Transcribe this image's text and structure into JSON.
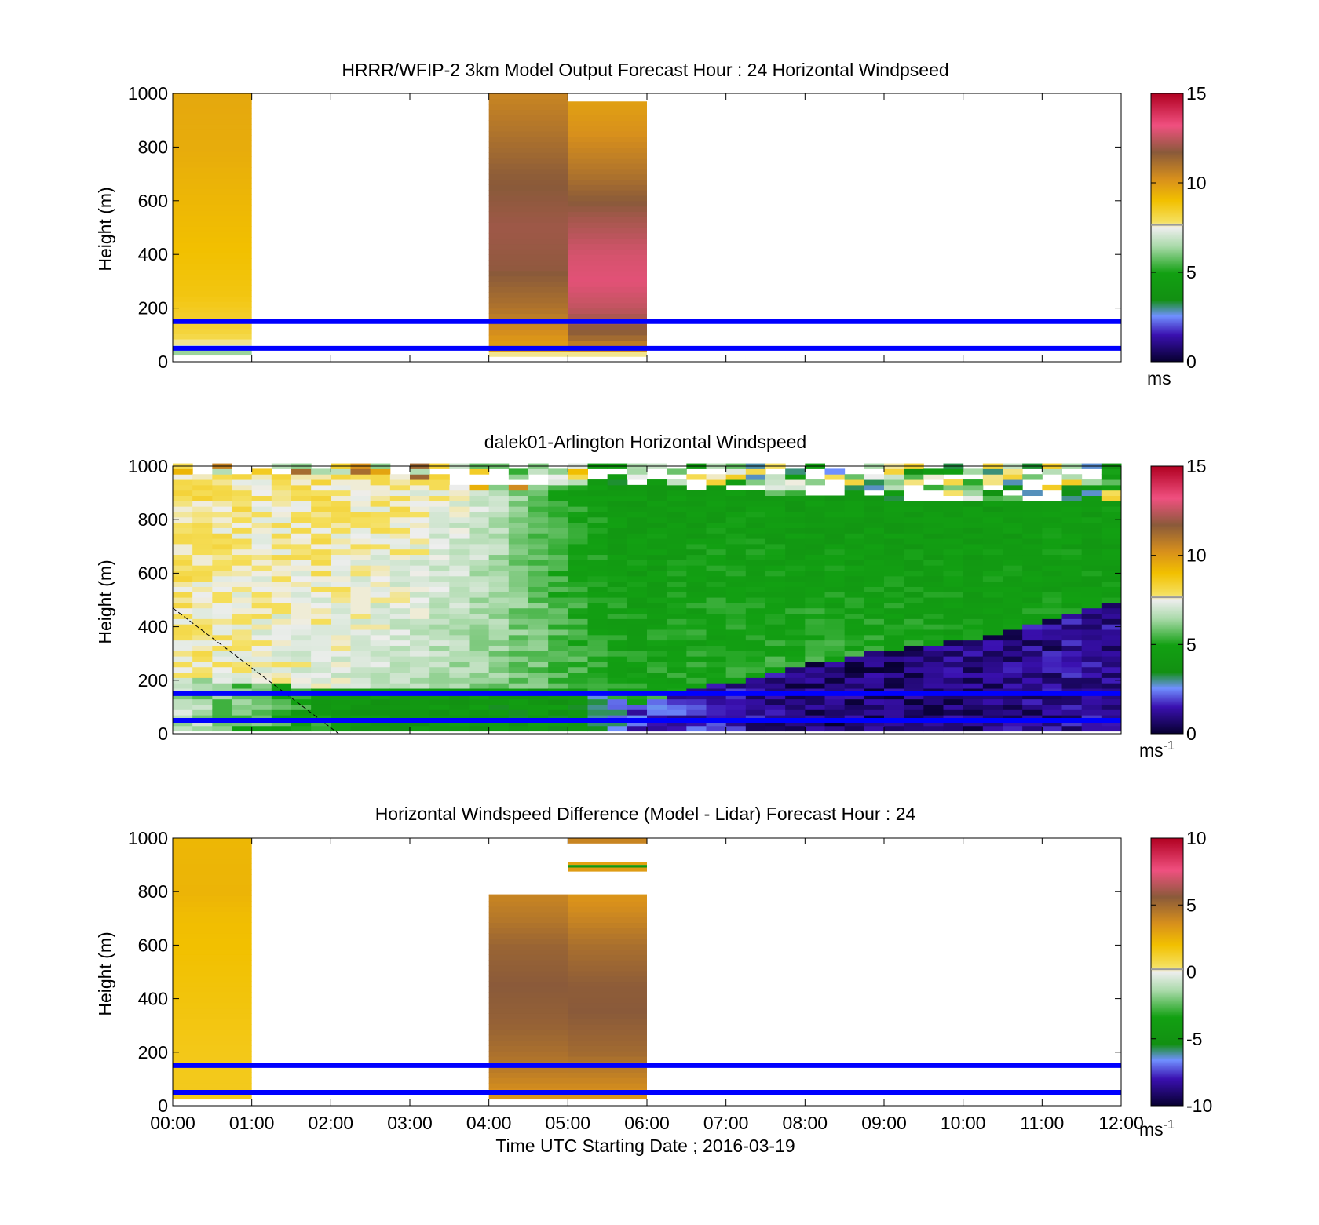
{
  "figure": {
    "xlabel": "Time UTC  Starting Date ; 2016-03-19",
    "x_ticks": [
      "00:00",
      "01:00",
      "02:00",
      "03:00",
      "04:00",
      "05:00",
      "06:00",
      "07:00",
      "08:00",
      "09:00",
      "10:00",
      "11:00",
      "12:00"
    ],
    "y_ticks": [
      "0",
      "200",
      "400",
      "600",
      "800",
      "1000"
    ],
    "reference_heights_m": [
      50,
      150
    ],
    "reference_color": "#0000ff"
  },
  "chart_data": [
    {
      "type": "heatmap",
      "title": "HRRR/WFIP-2 3km Model Output   Forecast Hour : 24 Horizontal Windpseed",
      "ylabel": "Height (m)",
      "xlim_hours": [
        0,
        12
      ],
      "ylim": [
        0,
        1000
      ],
      "colorbar": {
        "ticks": [
          "0",
          "5",
          "10",
          "15"
        ],
        "range": [
          0,
          15
        ],
        "unit": "ms",
        "unit_sup": ""
      },
      "columns": [
        {
          "t_start": 0,
          "t_end": 1,
          "ztop": 1000,
          "zbottom": 25,
          "profile": [
            [
              0,
              5.6
            ],
            [
              25,
              5.8
            ],
            [
              45,
              6.8
            ],
            [
              70,
              7.6
            ],
            [
              100,
              8.2
            ],
            [
              250,
              8.8
            ],
            [
              500,
              9.1
            ],
            [
              800,
              9.5
            ],
            [
              1000,
              9.6
            ]
          ]
        },
        {
          "t_start": 4,
          "t_end": 5,
          "ztop": 1000,
          "zbottom": 20,
          "profile": [
            [
              0,
              3.5
            ],
            [
              20,
              3.5
            ],
            [
              35,
              9.8
            ],
            [
              80,
              10.0
            ],
            [
              200,
              11.0
            ],
            [
              350,
              11.8
            ],
            [
              500,
              12.0
            ],
            [
              700,
              11.6
            ],
            [
              850,
              11.0
            ],
            [
              1000,
              10.5
            ]
          ]
        },
        {
          "t_start": 5,
          "t_end": 6,
          "ztop": 970,
          "zbottom": 20,
          "profile": [
            [
              0,
              3.5
            ],
            [
              20,
              3.5
            ],
            [
              35,
              9.8
            ],
            [
              100,
              11.5
            ],
            [
              200,
              12.5
            ],
            [
              300,
              13.0
            ],
            [
              400,
              12.8
            ],
            [
              550,
              12.0
            ],
            [
              700,
              11.0
            ],
            [
              850,
              10.2
            ],
            [
              1000,
              9.7
            ]
          ]
        }
      ]
    },
    {
      "type": "heatmap",
      "title": "dalek01-Arlington  Horizontal Windspeed",
      "ylabel": "Height (m)",
      "xlim_hours": [
        0,
        12
      ],
      "ylim": [
        0,
        1000
      ],
      "colorbar": {
        "ticks": [
          "0",
          "5",
          "10",
          "15"
        ],
        "range": [
          0,
          15
        ],
        "unit": "ms",
        "unit_sup": "-1"
      },
      "hour_profiles": [
        {
          "t": 0.25,
          "top": 950,
          "bottom_region_top": 200,
          "near_ground": 6.5,
          "mid": 7.6,
          "upper": 8.0
        },
        {
          "t": 1.0,
          "top": 950,
          "bottom_region_top": 180,
          "near_ground": 5.5,
          "mid": 7.4,
          "upper": 7.8
        },
        {
          "t": 2.0,
          "top": 950,
          "bottom_region_top": 160,
          "near_ground": 4.5,
          "mid": 7.2,
          "upper": 7.9
        },
        {
          "t": 3.0,
          "top": 950,
          "bottom_region_top": 160,
          "near_ground": 4.0,
          "mid": 6.8,
          "upper": 7.8
        },
        {
          "t": 4.0,
          "top": 900,
          "bottom_region_top": 160,
          "near_ground": 4.2,
          "mid": 6.2,
          "upper": 7.0
        },
        {
          "t": 5.0,
          "top": 920,
          "bottom_region_top": 160,
          "near_ground": 4.0,
          "mid": 5.5,
          "upper": 5.0
        },
        {
          "t": 5.8,
          "top": 920,
          "bottom_region_top": 100,
          "near_ground": 2.0,
          "mid": 5.0,
          "upper": 4.3
        },
        {
          "t": 7.0,
          "top": 900,
          "bottom_region_top": 180,
          "near_ground": 1.5,
          "mid": 5.2,
          "upper": 4.5
        },
        {
          "t": 8.0,
          "top": 880,
          "bottom_region_top": 250,
          "near_ground": 0.8,
          "mid": 5.2,
          "upper": 4.3
        },
        {
          "t": 9.0,
          "top": 870,
          "bottom_region_top": 300,
          "near_ground": 0.8,
          "mid": 5.0,
          "upper": 4.3
        },
        {
          "t": 10.0,
          "top": 850,
          "bottom_region_top": 340,
          "near_ground": 0.8,
          "mid": 4.8,
          "upper": 4.3
        },
        {
          "t": 11.0,
          "top": 850,
          "bottom_region_top": 400,
          "near_ground": 1.0,
          "mid": 4.8,
          "upper": 4.5
        },
        {
          "t": 11.9,
          "top": 850,
          "bottom_region_top": 480,
          "near_ground": 1.2,
          "mid": 4.6,
          "upper": 4.5
        }
      ],
      "dashed_line": {
        "from": [
          0.0,
          470
        ],
        "to": [
          2.1,
          0
        ]
      }
    },
    {
      "type": "heatmap",
      "title": "Horizontal Windspeed Difference (Model - Lidar) Forecast Hour : 24",
      "ylabel": "Height (m)",
      "xlim_hours": [
        0,
        12
      ],
      "ylim": [
        0,
        1000
      ],
      "colorbar": {
        "ticks": [
          "-10",
          "-5",
          "0",
          "5",
          "10"
        ],
        "range": [
          -10,
          10
        ],
        "unit": "ms",
        "unit_sup": "-1"
      },
      "columns": [
        {
          "t_start": 0,
          "t_end": 1,
          "ztop": 1000,
          "zbottom": 25,
          "profile": [
            [
              0,
              1.5
            ],
            [
              200,
              1.6
            ],
            [
              500,
              1.9
            ],
            [
              700,
              2.1
            ],
            [
              800,
              2.4
            ],
            [
              1000,
              2.3
            ]
          ]
        },
        {
          "t_start": 4,
          "t_end": 5,
          "ztop": 790,
          "zbottom": 25,
          "profile": [
            [
              0,
              3.0
            ],
            [
              40,
              3.5
            ],
            [
              150,
              4.5
            ],
            [
              300,
              5.3
            ],
            [
              450,
              5.6
            ],
            [
              600,
              5.2
            ],
            [
              700,
              4.5
            ],
            [
              790,
              4.0
            ]
          ]
        },
        {
          "t_start": 5,
          "t_end": 6,
          "ztop": 790,
          "zbottom": 25,
          "profile": [
            [
              0,
              3.0
            ],
            [
              40,
              3.5
            ],
            [
              200,
              5.0
            ],
            [
              350,
              5.6
            ],
            [
              450,
              5.5
            ],
            [
              600,
              4.8
            ],
            [
              700,
              4.0
            ],
            [
              790,
              3.4
            ]
          ]
        }
      ],
      "extra_bands": [
        {
          "t_start": 5,
          "t_end": 6,
          "z0": 980,
          "z1": 1000,
          "value": 4.0
        },
        {
          "t_start": 5,
          "t_end": 6,
          "z0": 875,
          "z1": 890,
          "value": 3.2
        },
        {
          "t_start": 5,
          "t_end": 6,
          "z0": 890,
          "z1": 900,
          "value": -4.5
        },
        {
          "t_start": 5,
          "t_end": 6,
          "z0": 900,
          "z1": 910,
          "value": 3.0
        }
      ]
    }
  ]
}
